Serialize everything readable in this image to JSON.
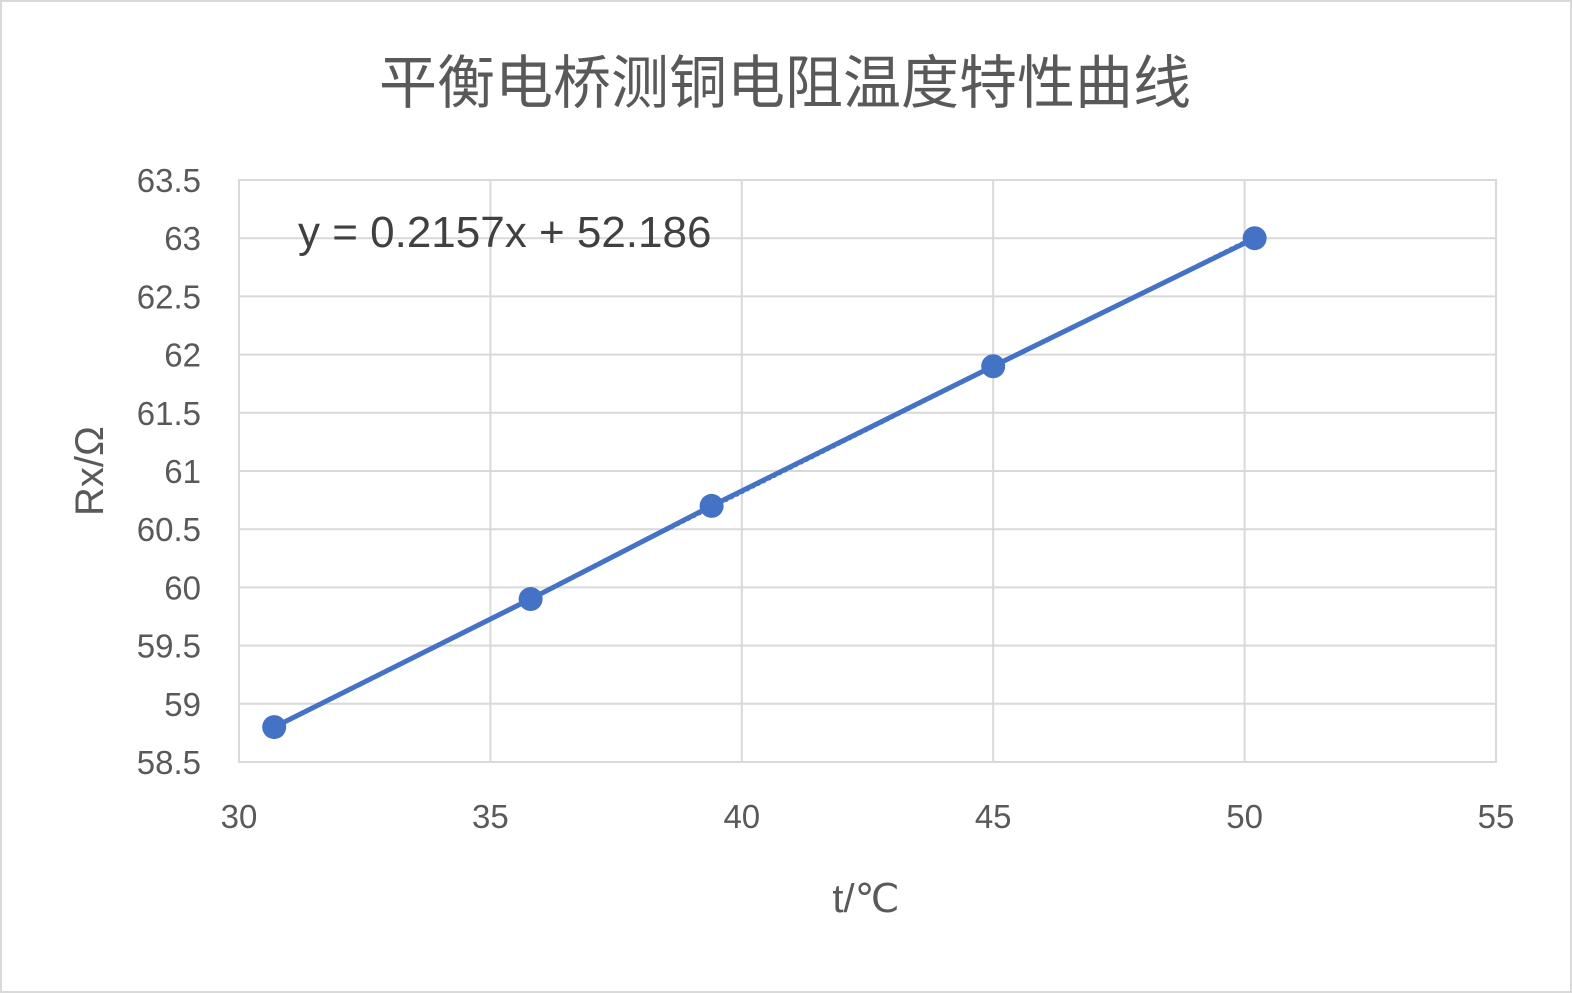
{
  "chart_data": {
    "type": "scatter",
    "title": "平衡电桥测铜电阻温度特性曲线",
    "xlabel": "t/℃",
    "ylabel": "Rx/Ω",
    "xlim": [
      30,
      55
    ],
    "ylim": [
      58.5,
      63.5
    ],
    "x_ticks": [
      "30",
      "35",
      "40",
      "45",
      "50",
      "55"
    ],
    "y_ticks": [
      "58.5",
      "59",
      "59.5",
      "60",
      "60.5",
      "61",
      "61.5",
      "62",
      "62.5",
      "63",
      "63.5"
    ],
    "grid": true,
    "legend": "none",
    "series": [
      {
        "x": [
          30.7,
          35.8,
          39.4,
          45.0,
          50.2
        ],
        "y": [
          58.8,
          59.9,
          60.7,
          61.9,
          63.0
        ],
        "color": "#4472C4",
        "line": true,
        "marker": "circle"
      }
    ],
    "trendline": {
      "type": "linear",
      "slope": 0.2157,
      "intercept": 52.186,
      "equation": "y = 0.2157x + 52.186"
    }
  }
}
